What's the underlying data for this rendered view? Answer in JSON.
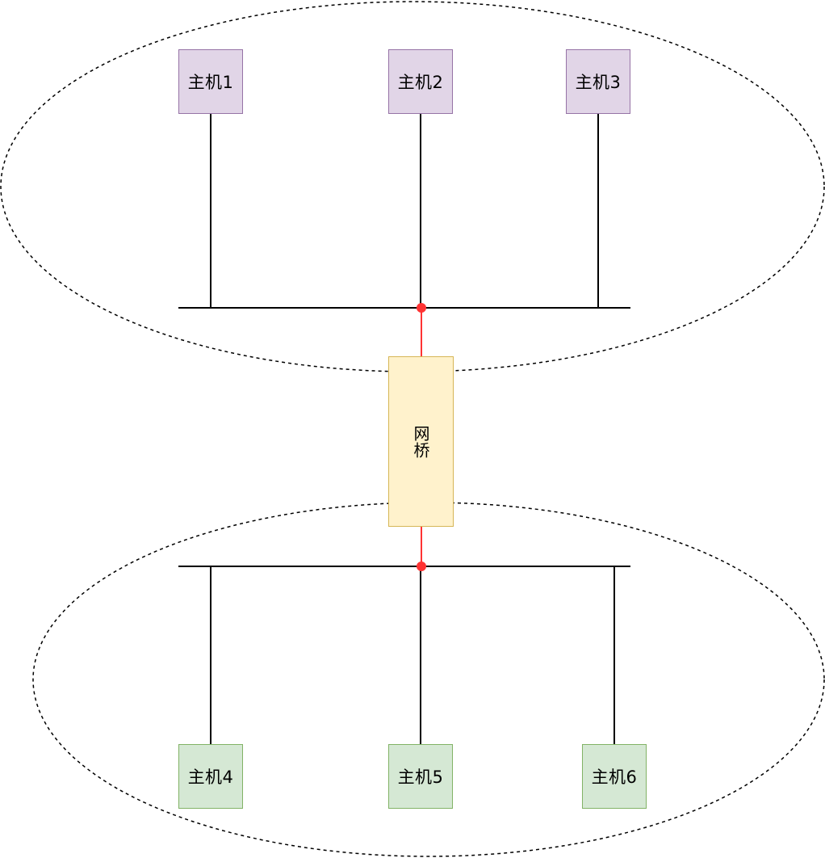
{
  "colors": {
    "top_host_fill": "#e1d5e7",
    "top_host_border": "#9673a6",
    "bottom_host_fill": "#d5e8d4",
    "bottom_host_border": "#82b366",
    "bridge_fill": "#fff2cc",
    "bridge_border": "#d6b656",
    "link_line": "#000000",
    "bridge_link": "#ff3333",
    "segment_outline": "#000000"
  },
  "segments": {
    "top": {
      "hosts": [
        {
          "label": "主机1"
        },
        {
          "label": "主机2"
        },
        {
          "label": "主机3"
        }
      ]
    },
    "bottom": {
      "hosts": [
        {
          "label": "主机4"
        },
        {
          "label": "主机5"
        },
        {
          "label": "主机6"
        }
      ]
    }
  },
  "bridge": {
    "label": "网桥"
  }
}
